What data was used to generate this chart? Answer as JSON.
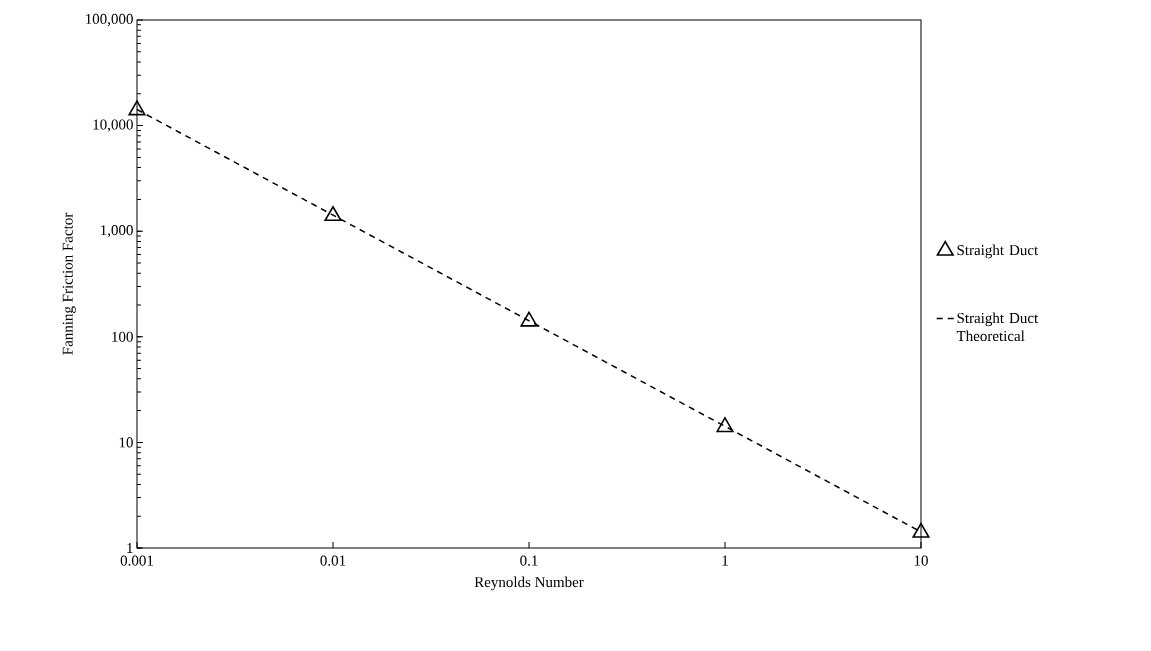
{
  "chart_data": {
    "type": "scatter",
    "xlabel": "Reynolds Number",
    "ylabel": "Fanning Friction Factor",
    "log": "xy",
    "grid": false,
    "legend": "right",
    "xlim": [
      0.001,
      10
    ],
    "ylim": [
      1,
      100000
    ],
    "xticks": [
      0.001,
      0.01,
      0.1,
      1,
      10
    ],
    "yticks": [
      1,
      10,
      100,
      {
        "value": 1000,
        "label": "1,000"
      },
      {
        "value": 10000,
        "label": "10,000"
      },
      {
        "value": 100000,
        "label": "100,000"
      }
    ],
    "series": [
      {
        "name": "Straight Duct",
        "marker": "triangle",
        "color": "#000000",
        "x": [
          0.001,
          0.01,
          0.1,
          1,
          10
        ],
        "values": [
          14000,
          1400,
          140,
          14,
          1.4
        ]
      },
      {
        "name": "Straight Duct Theoretical",
        "type": "line",
        "marker": "none",
        "line_style": "dashed",
        "color": "#000000",
        "x": [
          0.001,
          10
        ],
        "values": [
          14200,
          1.42
        ]
      }
    ]
  }
}
